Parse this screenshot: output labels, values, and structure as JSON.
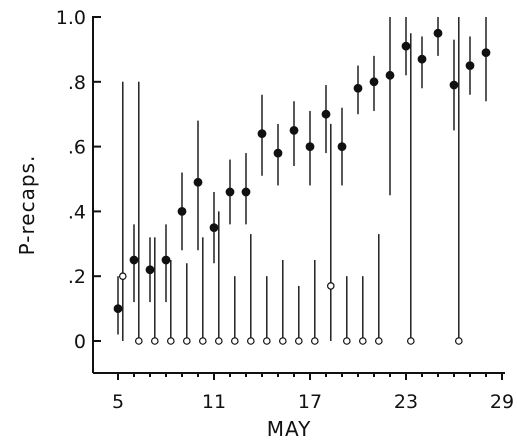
{
  "chart_data": {
    "type": "scatter",
    "title": "",
    "xlabel": "MAY",
    "ylabel": "P-recaps.",
    "xlim": [
      4,
      29
    ],
    "ylim": [
      -0.1,
      1.0
    ],
    "xticks": [
      5,
      11,
      17,
      23,
      29
    ],
    "xtick_labels": [
      "5",
      "11",
      "17",
      "23",
      "29"
    ],
    "yticks": [
      0,
      0.2,
      0.4,
      0.6,
      0.8,
      1.0
    ],
    "ytick_labels": [
      "0",
      ".2",
      ".4",
      ".6",
      ".8",
      "1.0"
    ],
    "grid": false,
    "series": [
      {
        "marker": "filled-circle",
        "color": "#111111",
        "points": [
          {
            "x": 5,
            "y": 0.1,
            "lo": 0.02,
            "hi": 0.2
          },
          {
            "x": 6,
            "y": 0.25,
            "lo": 0.12,
            "hi": 0.36
          },
          {
            "x": 7,
            "y": 0.22,
            "lo": 0.12,
            "hi": 0.32
          },
          {
            "x": 8,
            "y": 0.25,
            "lo": 0.12,
            "hi": 0.36
          },
          {
            "x": 9,
            "y": 0.4,
            "lo": 0.28,
            "hi": 0.52
          },
          {
            "x": 10,
            "y": 0.49,
            "lo": 0.28,
            "hi": 0.68
          },
          {
            "x": 11,
            "y": 0.35,
            "lo": 0.24,
            "hi": 0.46
          },
          {
            "x": 12,
            "y": 0.46,
            "lo": 0.36,
            "hi": 0.56
          },
          {
            "x": 13,
            "y": 0.46,
            "lo": 0.36,
            "hi": 0.58
          },
          {
            "x": 14,
            "y": 0.64,
            "lo": 0.51,
            "hi": 0.76
          },
          {
            "x": 15,
            "y": 0.58,
            "lo": 0.48,
            "hi": 0.67
          },
          {
            "x": 16,
            "y": 0.65,
            "lo": 0.54,
            "hi": 0.74
          },
          {
            "x": 17,
            "y": 0.6,
            "lo": 0.48,
            "hi": 0.71
          },
          {
            "x": 18,
            "y": 0.7,
            "lo": 0.58,
            "hi": 0.79
          },
          {
            "x": 19,
            "y": 0.6,
            "lo": 0.48,
            "hi": 0.72
          },
          {
            "x": 20,
            "y": 0.78,
            "lo": 0.7,
            "hi": 0.85
          },
          {
            "x": 21,
            "y": 0.8,
            "lo": 0.71,
            "hi": 0.88
          },
          {
            "x": 22,
            "y": 0.82,
            "lo": 0.45,
            "hi": 1.0
          },
          {
            "x": 23,
            "y": 0.91,
            "lo": 0.82,
            "hi": 1.0
          },
          {
            "x": 24,
            "y": 0.87,
            "lo": 0.78,
            "hi": 0.94
          },
          {
            "x": 25,
            "y": 0.95,
            "lo": 0.88,
            "hi": 1.0
          },
          {
            "x": 26,
            "y": 0.79,
            "lo": 0.65,
            "hi": 0.93
          },
          {
            "x": 27,
            "y": 0.85,
            "lo": 0.76,
            "hi": 0.94
          },
          {
            "x": 28,
            "y": 0.89,
            "lo": 0.74,
            "hi": 1.0
          }
        ]
      },
      {
        "marker": "open-circle",
        "color": "#111111",
        "points": [
          {
            "x": 5.3,
            "y": 0.2,
            "lo": 0.0,
            "hi": 0.8
          },
          {
            "x": 6.3,
            "y": 0.0,
            "lo": 0.0,
            "hi": 0.8
          },
          {
            "x": 7.3,
            "y": 0.0,
            "lo": 0.0,
            "hi": 0.32
          },
          {
            "x": 8.3,
            "y": 0.0,
            "lo": 0.0,
            "hi": 0.25
          },
          {
            "x": 9.3,
            "y": 0.0,
            "lo": 0.0,
            "hi": 0.24
          },
          {
            "x": 10.3,
            "y": 0.0,
            "lo": 0.0,
            "hi": 0.32
          },
          {
            "x": 11.3,
            "y": 0.0,
            "lo": 0.0,
            "hi": 0.4
          },
          {
            "x": 12.3,
            "y": 0.0,
            "lo": 0.0,
            "hi": 0.2
          },
          {
            "x": 13.3,
            "y": 0.0,
            "lo": 0.0,
            "hi": 0.33
          },
          {
            "x": 14.3,
            "y": 0.0,
            "lo": 0.0,
            "hi": 0.2
          },
          {
            "x": 15.3,
            "y": 0.0,
            "lo": 0.0,
            "hi": 0.25
          },
          {
            "x": 16.3,
            "y": 0.0,
            "lo": 0.0,
            "hi": 0.17
          },
          {
            "x": 17.3,
            "y": 0.0,
            "lo": 0.0,
            "hi": 0.25
          },
          {
            "x": 18.3,
            "y": 0.17,
            "lo": 0.0,
            "hi": 0.67
          },
          {
            "x": 19.3,
            "y": 0.0,
            "lo": 0.0,
            "hi": 0.2
          },
          {
            "x": 20.3,
            "y": 0.0,
            "lo": 0.0,
            "hi": 0.2
          },
          {
            "x": 21.3,
            "y": 0.0,
            "lo": 0.0,
            "hi": 0.33
          },
          {
            "x": 23.3,
            "y": 0.0,
            "lo": 0.0,
            "hi": 0.95
          },
          {
            "x": 26.3,
            "y": 0.0,
            "lo": 0.0,
            "hi": 1.0
          }
        ]
      }
    ]
  }
}
